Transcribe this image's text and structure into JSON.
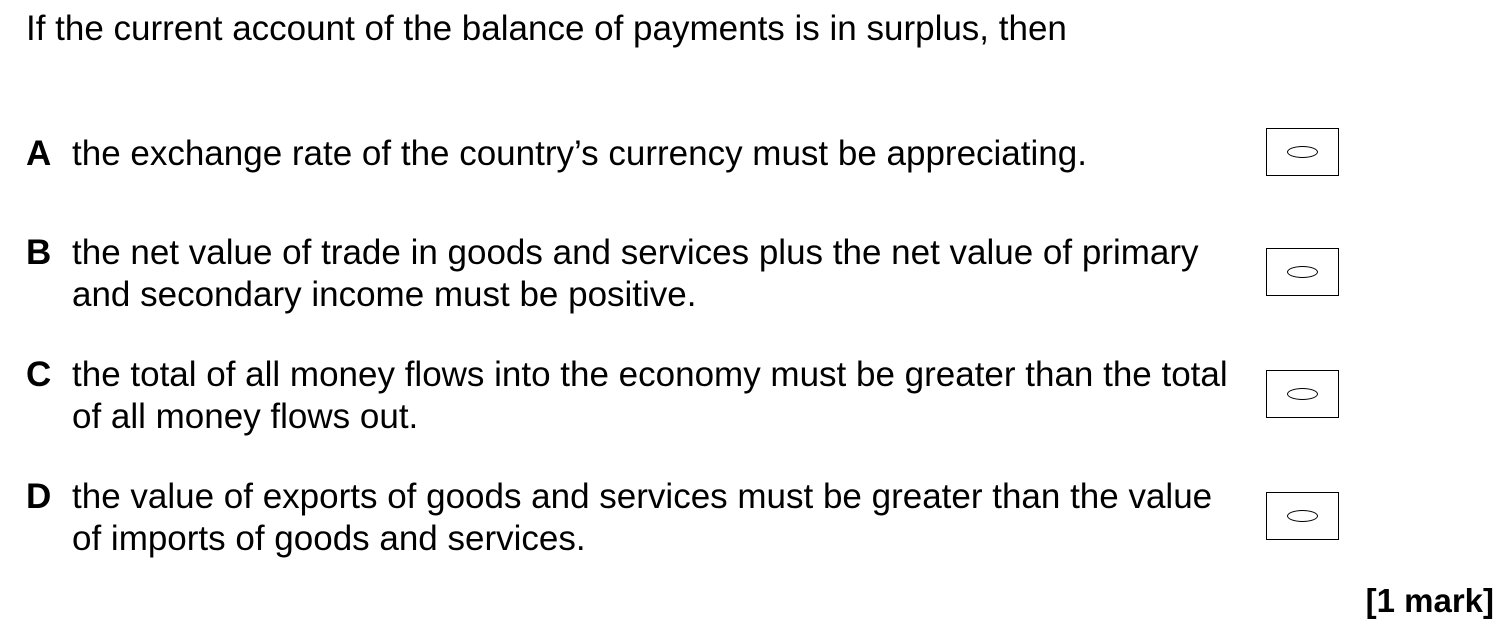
{
  "question": {
    "stem": "If the current account of the balance of payments is in surplus, then",
    "mark": "[1 mark]"
  },
  "options": [
    {
      "letter": "A",
      "text": "the exchange rate of the country’s currency must be appreciating.",
      "icon": "radio-oval-icon"
    },
    {
      "letter": "B",
      "text": "the net value of trade in goods and services plus the net value of primary and secondary income must be positive.",
      "icon": "radio-oval-icon"
    },
    {
      "letter": "C",
      "text": "the total of all money flows into the economy must be greater than the total of all money flows out.",
      "icon": "radio-oval-icon"
    },
    {
      "letter": "D",
      "text": "the value of exports of goods and services must be greater than the value of imports of goods and services.",
      "icon": "radio-oval-icon"
    }
  ]
}
